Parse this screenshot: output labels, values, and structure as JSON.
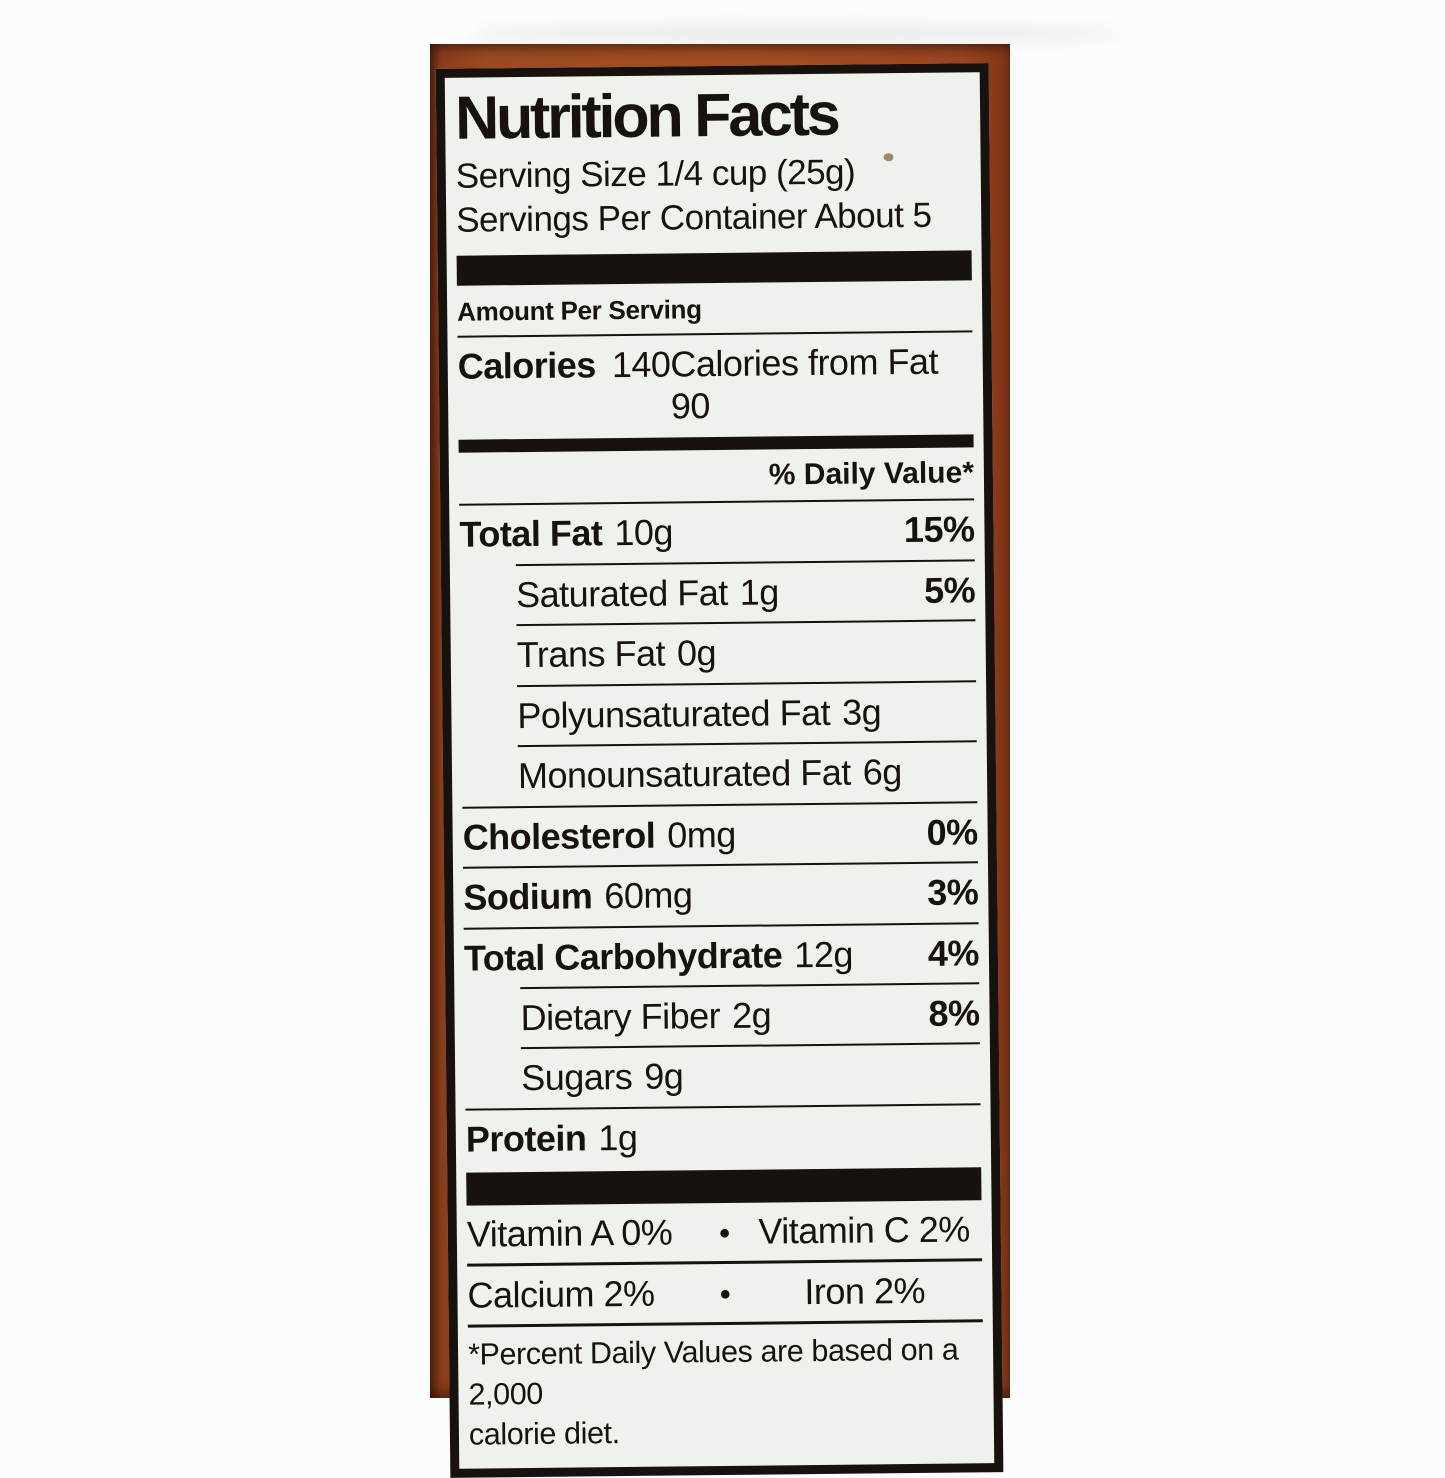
{
  "label": {
    "title": "Nutrition Facts",
    "serving_size": "Serving Size 1/4 cup (25g)",
    "servings_per_container": "Servings Per Container About 5",
    "amount_per_serving": "Amount Per Serving",
    "calories": {
      "label": "Calories",
      "value": "140",
      "from_fat": "Calories from Fat 90"
    },
    "daily_value_header": "% Daily Value*",
    "nutrients": [
      {
        "name": "Total Fat",
        "amount": "10g",
        "dv": "15%",
        "bold": true,
        "sub": false
      },
      {
        "name": "Saturated Fat",
        "amount": "1g",
        "dv": "5%",
        "bold": false,
        "sub": true
      },
      {
        "name": "Trans Fat",
        "amount": "0g",
        "dv": "",
        "bold": false,
        "sub": true
      },
      {
        "name": "Polyunsaturated Fat",
        "amount": "3g",
        "dv": "",
        "bold": false,
        "sub": true
      },
      {
        "name": "Monounsaturated Fat",
        "amount": "6g",
        "dv": "",
        "bold": false,
        "sub": true
      },
      {
        "name": "Cholesterol",
        "amount": "0mg",
        "dv": "0%",
        "bold": true,
        "sub": false
      },
      {
        "name": "Sodium",
        "amount": "60mg",
        "dv": "3%",
        "bold": true,
        "sub": false
      },
      {
        "name": "Total Carbohydrate",
        "amount": "12g",
        "dv": "4%",
        "bold": true,
        "sub": false
      },
      {
        "name": "Dietary Fiber",
        "amount": "2g",
        "dv": "8%",
        "bold": false,
        "sub": true
      },
      {
        "name": "Sugars",
        "amount": "9g",
        "dv": "",
        "bold": false,
        "sub": true
      },
      {
        "name": "Protein",
        "amount": "1g",
        "dv": "",
        "bold": true,
        "sub": false
      }
    ],
    "bullet": "•",
    "vitamins": [
      {
        "left": "Vitamin A 0%",
        "right": "Vitamin C 2%"
      },
      {
        "left": "Calcium 2%",
        "right": "Iron 2%"
      }
    ],
    "footnote_lines": [
      "*Percent Daily Values are based on a 2,000",
      "calorie diet."
    ]
  },
  "colors": {
    "ink": "#17120d",
    "label_background": "#eff2ec",
    "package_rust": "#9d4a23",
    "page_background": "#fcfcfc"
  }
}
